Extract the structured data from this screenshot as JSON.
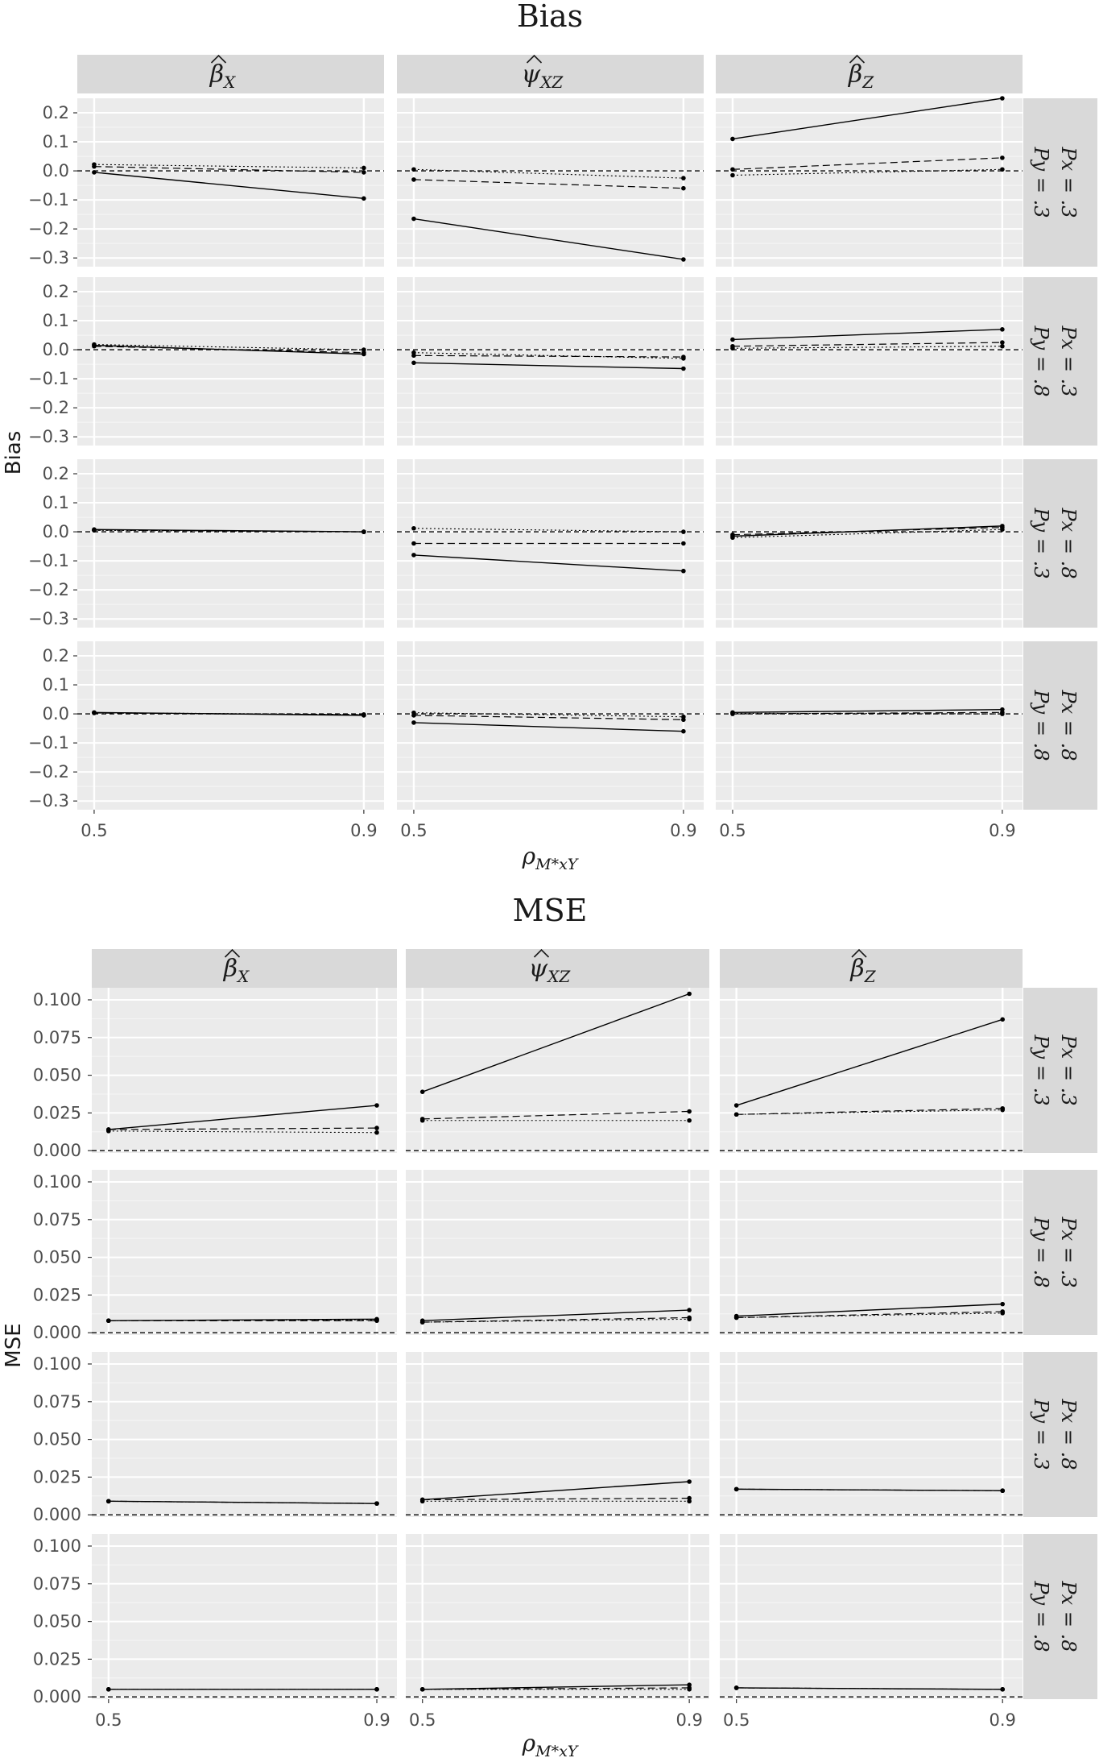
{
  "chart_data": [
    {
      "type": "line",
      "title": "Bias",
      "ylabel": "Bias",
      "xlabel": "ρM*xY",
      "x": [
        0.5,
        0.9
      ],
      "x_tick_labels": [
        "0.5",
        "0.9"
      ],
      "ylim": [
        -0.33,
        0.25
      ],
      "y_ticks": [
        -0.3,
        -0.2,
        -0.1,
        0.0,
        0.1,
        0.2
      ],
      "y_tick_labels": [
        "−0.3",
        "−0.2",
        "−0.1",
        "0.0",
        "0.1",
        "0.2"
      ],
      "reference_line": 0,
      "columns": [
        "βX",
        "ψXZ",
        "βZ"
      ],
      "rows": [
        {
          "px": "Px = .3",
          "py": "Py = .3"
        },
        {
          "px": "Px = .3",
          "py": "Py = .8"
        },
        {
          "px": "Px = .8",
          "py": "Py = .3"
        },
        {
          "px": "Px = .8",
          "py": "Py = .8"
        }
      ],
      "panels": [
        [
          {
            "solid": [
              -0.005,
              -0.095
            ],
            "dashed": [
              0.015,
              -0.005
            ],
            "dotted": [
              0.022,
              0.01
            ]
          },
          {
            "solid": [
              -0.165,
              -0.305
            ],
            "dashed": [
              -0.03,
              -0.06
            ],
            "dotted": [
              0.005,
              -0.025
            ]
          },
          {
            "solid": [
              0.11,
              0.25
            ],
            "dashed": [
              0.005,
              0.045
            ],
            "dotted": [
              -0.015,
              0.005
            ]
          }
        ],
        [
          {
            "solid": [
              0.015,
              -0.015
            ],
            "dashed": [
              0.012,
              -0.01
            ],
            "dotted": [
              0.018,
              0.0
            ]
          },
          {
            "solid": [
              -0.045,
              -0.065
            ],
            "dashed": [
              -0.02,
              -0.025
            ],
            "dotted": [
              -0.01,
              -0.03
            ]
          },
          {
            "solid": [
              0.035,
              0.07
            ],
            "dashed": [
              0.012,
              0.025
            ],
            "dotted": [
              0.005,
              0.012
            ]
          }
        ],
        [
          {
            "solid": [
              0.008,
              0.0
            ],
            "dashed": [
              0.006,
              0.0
            ],
            "dotted": [
              0.005,
              0.0
            ]
          },
          {
            "solid": [
              -0.08,
              -0.135
            ],
            "dashed": [
              -0.04,
              -0.04
            ],
            "dotted": [
              0.012,
              0.0
            ]
          },
          {
            "solid": [
              -0.015,
              0.02
            ],
            "dashed": [
              -0.01,
              0.015
            ],
            "dotted": [
              -0.02,
              0.008
            ]
          }
        ],
        [
          {
            "solid": [
              0.005,
              -0.005
            ],
            "dashed": [
              0.003,
              -0.003
            ],
            "dotted": [
              0.004,
              -0.002
            ]
          },
          {
            "solid": [
              -0.03,
              -0.06
            ],
            "dashed": [
              -0.005,
              -0.02
            ],
            "dotted": [
              0.004,
              -0.01
            ]
          },
          {
            "solid": [
              0.005,
              0.015
            ],
            "dashed": [
              0.0,
              0.005
            ],
            "dotted": [
              0.002,
              0.0
            ]
          }
        ]
      ]
    },
    {
      "type": "line",
      "title": "MSE",
      "ylabel": "MSE",
      "xlabel": "ρM*xY",
      "x": [
        0.5,
        0.9
      ],
      "x_tick_labels": [
        "0.5",
        "0.9"
      ],
      "ylim": [
        -0.0015,
        0.108
      ],
      "y_ticks": [
        0.0,
        0.025,
        0.05,
        0.075,
        0.1
      ],
      "y_tick_labels": [
        "0.000",
        "0.025",
        "0.050",
        "0.075",
        "0.100"
      ],
      "reference_line": 0,
      "columns": [
        "βX",
        "ψXZ",
        "βZ"
      ],
      "rows": [
        {
          "px": "Px = .3",
          "py": "Py = .3"
        },
        {
          "px": "Px = .3",
          "py": "Py = .8"
        },
        {
          "px": "Px = .8",
          "py": "Py = .3"
        },
        {
          "px": "Px = .8",
          "py": "Py = .8"
        }
      ],
      "panels": [
        [
          {
            "solid": [
              0.014,
              0.03
            ],
            "dashed": [
              0.014,
              0.015
            ],
            "dotted": [
              0.013,
              0.012
            ]
          },
          {
            "solid": [
              0.039,
              0.104
            ],
            "dashed": [
              0.021,
              0.026
            ],
            "dotted": [
              0.02,
              0.02
            ]
          },
          {
            "solid": [
              0.03,
              0.087
            ],
            "dashed": [
              0.024,
              0.028
            ],
            "dotted": [
              0.024,
              0.027
            ]
          }
        ],
        [
          {
            "solid": [
              0.008,
              0.009
            ],
            "dashed": [
              0.008,
              0.008
            ],
            "dotted": [
              0.008,
              0.0085
            ]
          },
          {
            "solid": [
              0.008,
              0.015
            ],
            "dashed": [
              0.007,
              0.01
            ],
            "dotted": [
              0.007,
              0.009
            ]
          },
          {
            "solid": [
              0.011,
              0.019
            ],
            "dashed": [
              0.01,
              0.014
            ],
            "dotted": [
              0.01,
              0.013
            ]
          }
        ],
        [
          {
            "solid": [
              0.009,
              0.0075
            ],
            "dashed": [
              0.009,
              0.0075
            ],
            "dotted": [
              0.009,
              0.0075
            ]
          },
          {
            "solid": [
              0.01,
              0.022
            ],
            "dashed": [
              0.01,
              0.011
            ],
            "dotted": [
              0.009,
              0.009
            ]
          },
          {
            "solid": [
              0.017,
              0.016
            ],
            "dashed": [
              0.017,
              0.016
            ],
            "dotted": [
              0.017,
              0.016
            ]
          }
        ],
        [
          {
            "solid": [
              0.005,
              0.005
            ],
            "dashed": [
              0.005,
              0.005
            ],
            "dotted": [
              0.005,
              0.005
            ]
          },
          {
            "solid": [
              0.005,
              0.008
            ],
            "dashed": [
              0.005,
              0.006
            ],
            "dotted": [
              0.005,
              0.005
            ]
          },
          {
            "solid": [
              0.006,
              0.005
            ],
            "dashed": [
              0.006,
              0.005
            ],
            "dotted": [
              0.006,
              0.005
            ]
          }
        ]
      ]
    }
  ],
  "colors": {
    "panel_background": "#ebebeb",
    "strip_background": "#d9d9d9",
    "grid_major": "#ffffff",
    "line": "#000000",
    "tick_label": "#4d4d4d",
    "text": "#1a1a1a"
  }
}
